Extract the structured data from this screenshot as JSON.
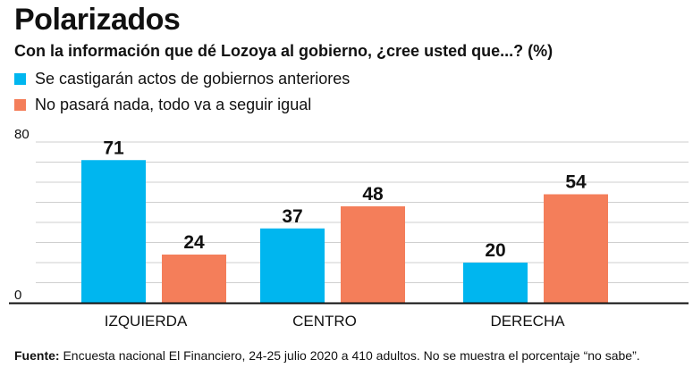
{
  "header": {
    "title": "Polarizados",
    "subtitle": "Con la información que dé Lozoya al gobierno, ¿cree usted que...? (%)"
  },
  "footer": {
    "source_label": "Fuente:",
    "source_text": "Encuesta nacional El Financiero, 24-25 julio 2020 a 410 adultos. No se muestra el porcentaje “no sabe”."
  },
  "chart_data": {
    "type": "bar",
    "title": "Polarizados",
    "subtitle": "Con la información que dé Lozoya al gobierno, ¿cree usted que...? (%)",
    "categories": [
      "IZQUIERDA",
      "CENTRO",
      "DERECHA"
    ],
    "series": [
      {
        "name": "Se castigarán actos de gobiernos anteriores",
        "color": "#00b6ef",
        "values": [
          71,
          37,
          20
        ]
      },
      {
        "name": "No pasará nada, todo va a seguir igual",
        "color": "#f47e5a",
        "values": [
          24,
          48,
          54
        ]
      }
    ],
    "ylim": [
      0,
      80
    ],
    "yticks": [
      "0",
      "80"
    ],
    "grid": true,
    "legend": "top-left",
    "data_labels": true
  }
}
